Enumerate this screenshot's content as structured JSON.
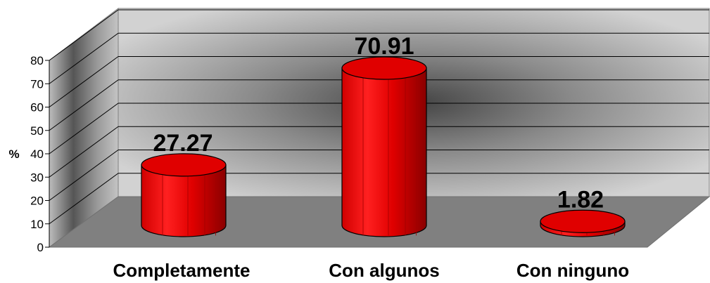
{
  "chart_data": {
    "type": "bar",
    "style": "3d-cylinder",
    "categories": [
      "Completamente",
      "Con algunos",
      "Con ninguno"
    ],
    "values": [
      27.27,
      70.91,
      1.82
    ],
    "data_labels": [
      "27.27",
      "70.91",
      "1.82"
    ],
    "title": "",
    "xlabel": "",
    "ylabel": "%",
    "ylim": [
      0,
      80
    ],
    "yticks": [
      "0",
      "10",
      "20",
      "30",
      "40",
      "50",
      "60",
      "70",
      "80"
    ],
    "grid": true,
    "legend": "none",
    "colors": {
      "bar": "#ff0000",
      "bar_dark": "#a00000",
      "bar_top": "#e00000",
      "floor": "#808080",
      "wall_light": "#c8c8c8",
      "wall_dark": "#4a4a4a"
    }
  }
}
